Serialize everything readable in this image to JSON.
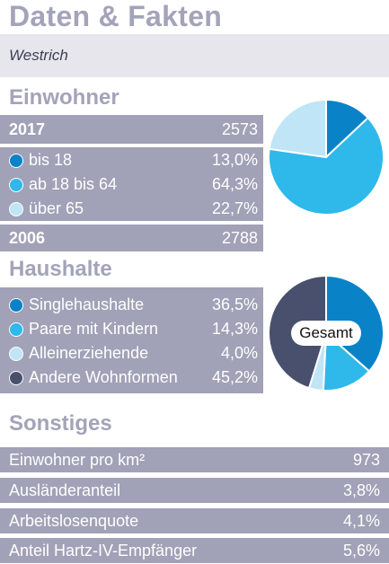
{
  "header": {
    "title": "Daten & Fakten",
    "subtitle": "Westrich"
  },
  "colors": {
    "dark_blue": "#0a82c8",
    "mid_blue": "#2fb8ea",
    "light_blue": "#bfe5f7",
    "navy": "#48506d",
    "panel": "#a1a1b7",
    "heading": "#a3a3b9"
  },
  "einwohner": {
    "heading": "Einwohner",
    "year_current_label": "2017",
    "year_current_value": "2573",
    "rows": [
      {
        "label": "bis 18",
        "value": "13,0%",
        "color": "#0a82c8"
      },
      {
        "label": "ab 18 bis 64",
        "value": "64,3%",
        "color": "#2fb8ea"
      },
      {
        "label": "über 65",
        "value": "22,7%",
        "color": "#bfe5f7"
      }
    ],
    "year_prev_label": "2006",
    "year_prev_value": "2788"
  },
  "haushalte": {
    "heading": "Haushalte",
    "center_label": "Gesamt",
    "rows": [
      {
        "label": "Singlehaushalte",
        "value": "36,5%",
        "color": "#0a82c8"
      },
      {
        "label": "Paare mit Kindern",
        "value": "14,3%",
        "color": "#2fb8ea"
      },
      {
        "label": "Alleinerziehende",
        "value": "4,0%",
        "color": "#bfe5f7"
      },
      {
        "label": "Andere Wohnformen",
        "value": "45,2%",
        "color": "#48506d"
      }
    ]
  },
  "sonstiges": {
    "heading": "Sonstiges",
    "rows": [
      {
        "label": "Einwohner pro km²",
        "value": "973"
      },
      {
        "label": "Ausländeranteil",
        "value": "3,8%"
      },
      {
        "label": "Arbeitslosenquote",
        "value": "4,1%"
      },
      {
        "label": "Anteil Hartz-IV-Empfänger",
        "value": "5,6%"
      }
    ]
  },
  "chart_data": [
    {
      "type": "pie",
      "categories": [
        "bis 18",
        "ab 18 bis 64",
        "über 65"
      ],
      "values": [
        13.0,
        64.3,
        22.7
      ],
      "colors": [
        "#0a82c8",
        "#2fb8ea",
        "#bfe5f7"
      ]
    },
    {
      "type": "pie",
      "categories": [
        "Singlehaushalte",
        "Paare mit Kindern",
        "Alleinerziehende",
        "Andere Wohnformen"
      ],
      "values": [
        36.5,
        14.3,
        4.0,
        45.2
      ],
      "colors": [
        "#0a82c8",
        "#2fb8ea",
        "#bfe5f7",
        "#48506d"
      ]
    }
  ]
}
